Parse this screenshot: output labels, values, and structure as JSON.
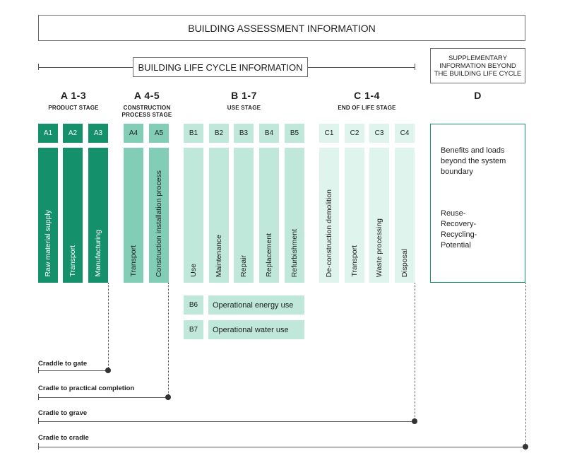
{
  "header": {
    "building_assessment": "BUILDING ASSESSMENT INFORMATION",
    "life_cycle": "BUILDING LIFE CYCLE INFORMATION",
    "supplementary": "SUPPLEMENTARY INFORMATION BEYOND THE BUILDING LIFE CYCLE"
  },
  "stages": [
    {
      "code": "A 1-3",
      "name": "PRODUCT STAGE"
    },
    {
      "code": "A 4-5",
      "name": "CONSTRUCTION PROCESS STAGE"
    },
    {
      "code": "B 1-7",
      "name": "USE STAGE"
    },
    {
      "code": "C 1-4",
      "name": "END OF LIFE STAGE"
    },
    {
      "code": "D",
      "name": ""
    }
  ],
  "modules": [
    {
      "code": "A1",
      "label": "Raw material supply",
      "color": "#14906a",
      "text": "#ffffff"
    },
    {
      "code": "A2",
      "label": "Transport",
      "color": "#14906a",
      "text": "#ffffff"
    },
    {
      "code": "A3",
      "label": "Manufacturing",
      "color": "#14906a",
      "text": "#ffffff"
    },
    {
      "code": "A4",
      "label": "Transport",
      "color": "#82cdb5",
      "text": "#1e1e1e"
    },
    {
      "code": "A5",
      "label": "Construction installation process",
      "color": "#82cdb5",
      "text": "#1e1e1e"
    },
    {
      "code": "B1",
      "label": "Use",
      "color": "#bfe8db",
      "text": "#1e1e1e"
    },
    {
      "code": "B2",
      "label": "Maintenance",
      "color": "#bfe8db",
      "text": "#1e1e1e"
    },
    {
      "code": "B3",
      "label": "Repair",
      "color": "#bfe8db",
      "text": "#1e1e1e"
    },
    {
      "code": "B4",
      "label": "Replacement",
      "color": "#bfe8db",
      "text": "#1e1e1e"
    },
    {
      "code": "B5",
      "label": "Refurbishment",
      "color": "#bfe8db",
      "text": "#1e1e1e"
    },
    {
      "code": "C1",
      "label": "De-construction demolition",
      "color": "#dff4ec",
      "text": "#1e1e1e"
    },
    {
      "code": "C2",
      "label": "Transport",
      "color": "#dff4ec",
      "text": "#1e1e1e"
    },
    {
      "code": "C3",
      "label": "Waste processing",
      "color": "#dff4ec",
      "text": "#1e1e1e"
    },
    {
      "code": "C4",
      "label": "Disposal",
      "color": "#dff4ec",
      "text": "#1e1e1e"
    }
  ],
  "operational": [
    {
      "code": "B6",
      "label": "Operational energy use"
    },
    {
      "code": "B7",
      "label": "Operational water use"
    }
  ],
  "module_d": {
    "text1": "Benefits and loads beyond the system boundary",
    "text2": "Reuse-\nRecovery-\nRecycling-\nPotential",
    "border_color": "#14906a"
  },
  "scopes": [
    {
      "label": "Craddle to gate"
    },
    {
      "label": "Cradle to practical completion"
    },
    {
      "label": "Cradle to grave"
    },
    {
      "label": "Cradle to cradle"
    }
  ]
}
